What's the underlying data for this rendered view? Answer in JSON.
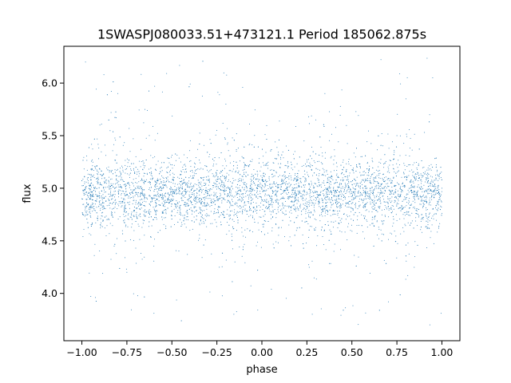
{
  "chart_data": {
    "type": "scatter",
    "title": "1SWASPJ080033.51+473121.1 Period 185062.875s",
    "xlabel": "phase",
    "ylabel": "flux",
    "xlim": [
      -1.1,
      1.1
    ],
    "ylim": [
      3.55,
      6.35
    ],
    "xticks": [
      -1.0,
      -0.75,
      -0.5,
      -0.25,
      0.0,
      0.25,
      0.5,
      0.75,
      1.0
    ],
    "xtick_labels": [
      "−1.00",
      "−0.75",
      "−0.50",
      "−0.25",
      "0.00",
      "0.25",
      "0.50",
      "0.75",
      "1.00"
    ],
    "yticks": [
      4.0,
      4.5,
      5.0,
      5.5,
      6.0
    ],
    "ytick_labels": [
      "4.0",
      "4.5",
      "5.0",
      "5.5",
      "6.0"
    ],
    "grid": false,
    "marker_color": "#1f77b4",
    "series": [
      {
        "x_range": [
          -1.0,
          1.0
        ],
        "y_range": [
          3.68,
          6.25
        ],
        "y_center": 4.95,
        "y_core_spread": 0.15,
        "repeat_period": 1.0,
        "scatter_enhanced_phases": [
          -0.82,
          -0.63,
          -0.2,
          0.33,
          0.8
        ],
        "points": [
          [
            -1.0,
            4.9
          ],
          [
            -0.98,
            6.2
          ],
          [
            -0.95,
            5.1
          ],
          [
            -0.9,
            5.6
          ],
          [
            -0.85,
            4.7
          ],
          [
            -0.8,
            5.9
          ],
          [
            -0.75,
            4.2
          ],
          [
            -0.7,
            5.3
          ],
          [
            -0.65,
            5.75
          ],
          [
            -0.6,
            4.45
          ],
          [
            -0.55,
            5.0
          ],
          [
            -0.5,
            4.85
          ],
          [
            -0.45,
            5.25
          ],
          [
            -0.4,
            4.6
          ],
          [
            -0.35,
            5.05
          ],
          [
            -0.3,
            4.95
          ],
          [
            -0.25,
            5.55
          ],
          [
            -0.2,
            5.8
          ],
          [
            -0.15,
            4.3
          ],
          [
            -0.1,
            5.15
          ],
          [
            -0.05,
            4.9
          ],
          [
            0.0,
            5.0
          ],
          [
            0.05,
            4.75
          ],
          [
            0.1,
            5.2
          ],
          [
            0.15,
            4.5
          ],
          [
            0.2,
            5.1
          ],
          [
            0.25,
            4.85
          ],
          [
            0.3,
            5.65
          ],
          [
            0.35,
            5.9
          ],
          [
            0.4,
            4.4
          ],
          [
            0.45,
            5.0
          ],
          [
            0.5,
            4.95
          ],
          [
            0.55,
            5.3
          ],
          [
            0.6,
            4.65
          ],
          [
            0.65,
            5.1
          ],
          [
            0.7,
            4.9
          ],
          [
            0.75,
            5.5
          ],
          [
            0.8,
            5.85
          ],
          [
            0.85,
            4.35
          ],
          [
            0.9,
            5.2
          ],
          [
            0.95,
            4.8
          ],
          [
            1.0,
            5.0
          ]
        ]
      }
    ]
  }
}
